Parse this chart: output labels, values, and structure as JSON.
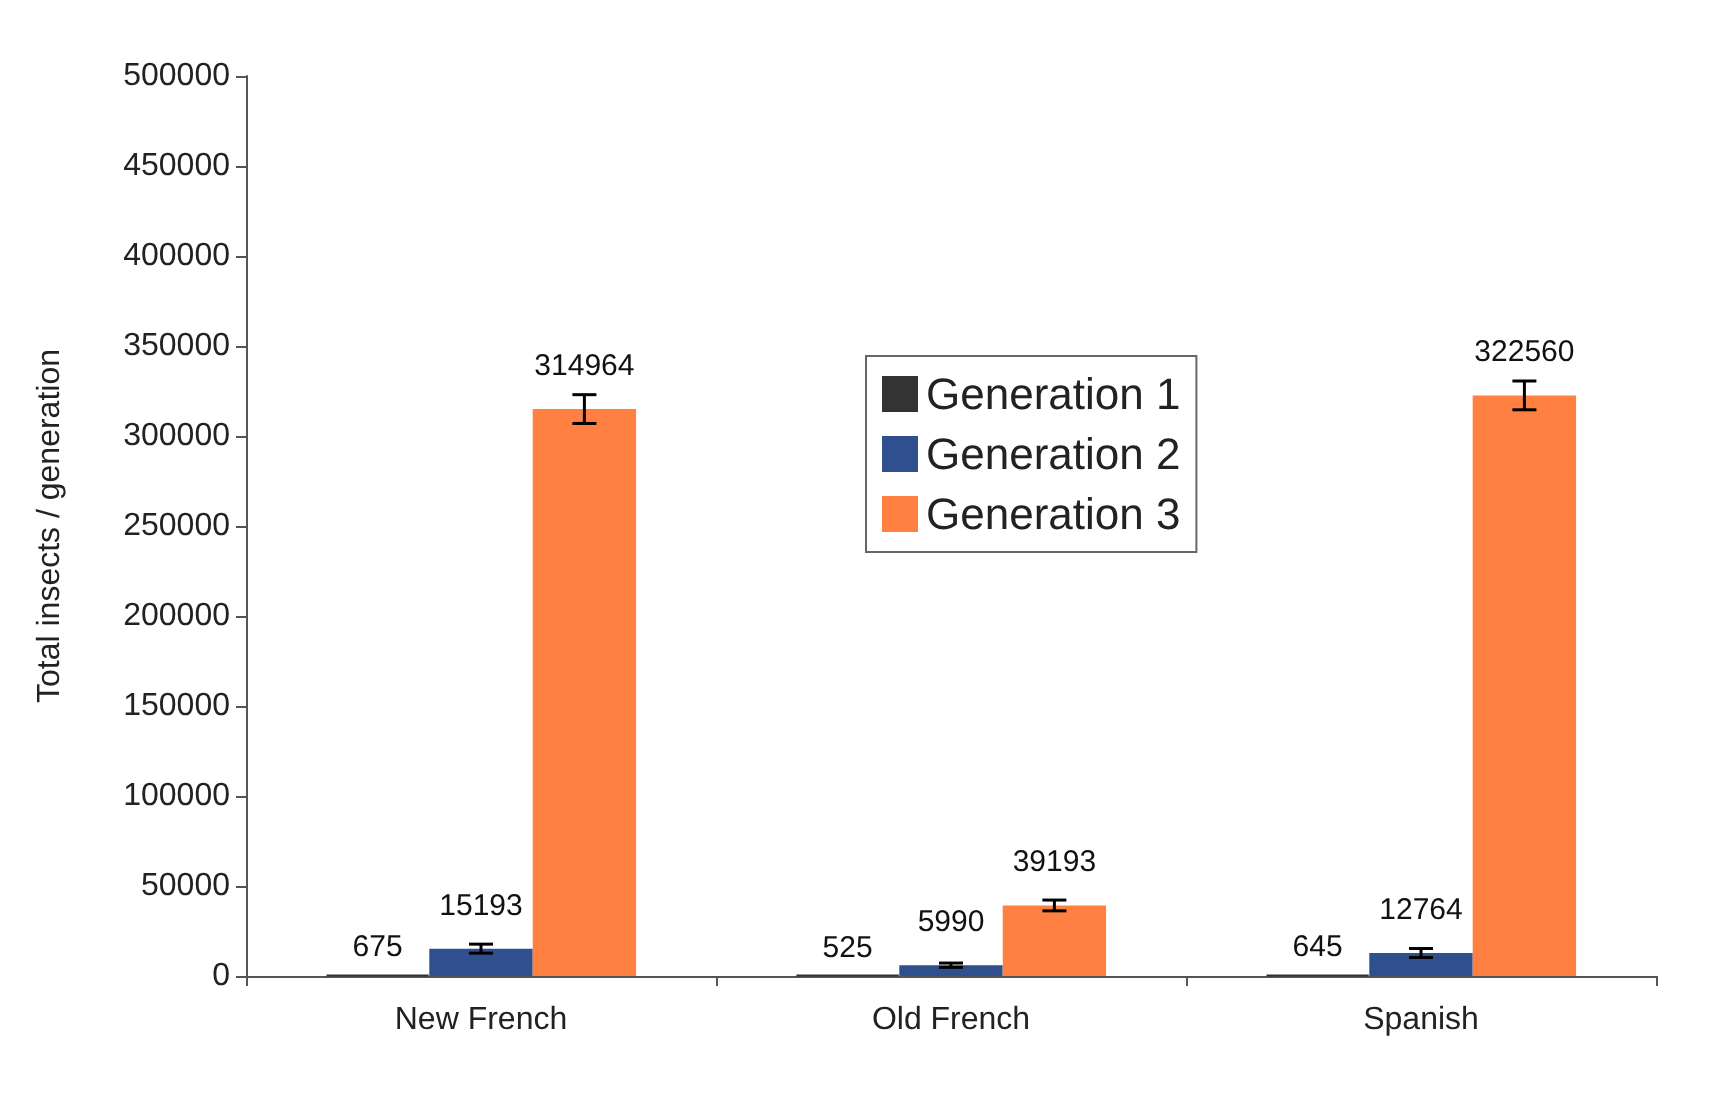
{
  "chart_data": {
    "type": "bar",
    "ylabel": "Total insects / generation",
    "categories": [
      "New French",
      "Old French",
      "Spanish"
    ],
    "series": [
      {
        "name": "Generation 1",
        "color": "#333333",
        "values": [
          675,
          525,
          645
        ]
      },
      {
        "name": "Generation 2",
        "color": "#2f4f8f",
        "values": [
          15193,
          5990,
          12764
        ],
        "errors": [
          2500,
          1200,
          2500
        ]
      },
      {
        "name": "Generation 3",
        "color": "#ff8040",
        "values": [
          314964,
          39193,
          322560
        ],
        "errors": [
          8000,
          3000,
          8000
        ]
      }
    ],
    "ylim": [
      0,
      500000
    ],
    "yticks": [
      0,
      50000,
      100000,
      150000,
      200000,
      250000,
      300000,
      350000,
      400000,
      450000,
      500000
    ],
    "data_labels": true,
    "grid": false,
    "legend": "top"
  }
}
